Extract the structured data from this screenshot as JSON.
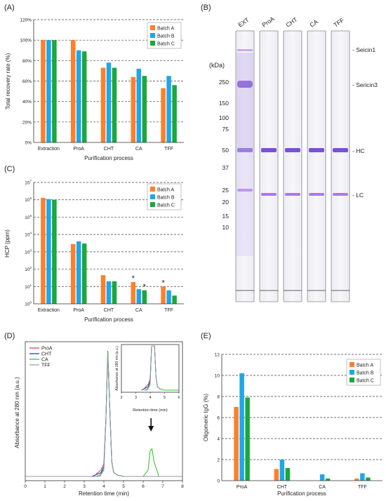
{
  "panels": {
    "A": {
      "letter": "(A)"
    },
    "B": {
      "letter": "(B)"
    },
    "C": {
      "letter": "(C)"
    },
    "D": {
      "letter": "(D)"
    },
    "E": {
      "letter": "(E)"
    }
  },
  "colors": {
    "batch_a": "#ff7f2a",
    "batch_b": "#1ea7e8",
    "batch_c": "#1aa83c",
    "proa": "#e8313b",
    "cht": "#1d2bd6",
    "ca": "#27c41f",
    "tff": "#8e9aa8"
  },
  "chart_data": [
    {
      "id": "A",
      "type": "bar",
      "xlabel": "Purification process",
      "ylabel": "Total recovery rate (%)",
      "categories": [
        "Extraction",
        "ProA",
        "CHT",
        "CA",
        "TFF"
      ],
      "ylim": [
        0,
        120
      ],
      "yticks": [
        "0%",
        "20%",
        "40%",
        "60%",
        "80%",
        "100%",
        "120%"
      ],
      "grid": "dashed horizontal",
      "legend": "top-right",
      "series": [
        {
          "name": "Batch A",
          "values": [
            100,
            100,
            73,
            64,
            53
          ]
        },
        {
          "name": "Batch B",
          "values": [
            100,
            90,
            78,
            72,
            65
          ]
        },
        {
          "name": "Batch C",
          "values": [
            100,
            89,
            73,
            65,
            56
          ]
        }
      ]
    },
    {
      "id": "B",
      "type": "table",
      "lanes": [
        "EXT",
        "ProA",
        "CHT",
        "CA",
        "TFF"
      ],
      "unit_label": "(kDa)",
      "markers": [
        "250",
        "150",
        "100",
        "75",
        "50",
        "37",
        "25",
        "20",
        "15",
        "10"
      ],
      "marker_kda": [
        250,
        150,
        100,
        75,
        50,
        37,
        25,
        20,
        15,
        10
      ],
      "band_labels": [
        "- Seicin1",
        "- Sericin3",
        "- HC",
        "- LC"
      ]
    },
    {
      "id": "C",
      "type": "bar",
      "xlabel": "Purification process",
      "ylabel": "HCP (ppm)",
      "categories": [
        "Extraction",
        "ProA",
        "CHT",
        "CA",
        "TFF"
      ],
      "yscale": "log",
      "ylim": [
        1,
        10000000
      ],
      "yticks_base": "10",
      "yticks_exp": [
        "0",
        "1",
        "2",
        "3",
        "4",
        "5",
        "6",
        "7"
      ],
      "grid": "dashed horizontal",
      "legend": "top-right",
      "series": [
        {
          "name": "Batch A",
          "values": [
            1300000,
            2800,
            45,
            18,
            10
          ]
        },
        {
          "name": "Batch B",
          "values": [
            1100000,
            4000,
            20,
            7,
            6
          ]
        },
        {
          "name": "Batch C",
          "values": [
            1000000,
            3000,
            20,
            6,
            3
          ]
        }
      ],
      "annotations": [
        {
          "text": "*",
          "category": "CA",
          "series": "Batch A"
        },
        {
          "text": "*",
          "category": "CA",
          "series": "Batch C"
        },
        {
          "text": "*",
          "category": "TFF",
          "series": "Batch A"
        }
      ]
    },
    {
      "id": "D",
      "type": "line",
      "xlabel": "Retention time (min)",
      "ylabel": "Absorbance at 280 nm (a.u.)",
      "xlim": [
        0,
        8
      ],
      "xticks": [
        "0",
        "1",
        "2",
        "3",
        "4",
        "5",
        "6",
        "7",
        "8"
      ],
      "legend": "top-left",
      "series": [
        {
          "name": "ProA",
          "x": [
            0,
            3.4,
            3.55,
            3.7,
            3.85,
            4.0,
            4.1,
            4.2,
            4.3,
            4.4,
            4.5,
            4.7,
            5.0,
            8
          ],
          "y": [
            0.0,
            0.0,
            0.01,
            0.03,
            0.05,
            0.1,
            0.45,
            1.0,
            0.55,
            0.12,
            0.03,
            0.01,
            0.0,
            0.0
          ]
        },
        {
          "name": "CHT",
          "x": [
            0,
            3.4,
            3.55,
            3.7,
            3.85,
            4.0,
            4.1,
            4.2,
            4.3,
            4.4,
            4.5,
            4.7,
            5.0,
            8
          ],
          "y": [
            0.0,
            0.0,
            0.01,
            0.02,
            0.03,
            0.08,
            0.43,
            0.98,
            0.55,
            0.12,
            0.03,
            0.01,
            0.0,
            0.0
          ]
        },
        {
          "name": "CA",
          "x": [
            0,
            3.6,
            3.8,
            4.0,
            4.1,
            4.2,
            4.3,
            4.4,
            4.5,
            4.7,
            5.0,
            6.0,
            6.25,
            6.35,
            6.45,
            6.55,
            6.8,
            8
          ],
          "y": [
            0.0,
            0.0,
            0.01,
            0.06,
            0.45,
            0.99,
            0.55,
            0.12,
            0.03,
            0.01,
            0.0,
            0.0,
            0.05,
            0.2,
            0.22,
            0.12,
            0.0,
            0.0
          ]
        },
        {
          "name": "TFF",
          "x": [
            0,
            3.6,
            3.8,
            4.0,
            4.1,
            4.2,
            4.3,
            4.4,
            4.5,
            4.7,
            5.0,
            8
          ],
          "y": [
            0.0,
            0.0,
            0.0,
            0.05,
            0.44,
            0.97,
            0.55,
            0.12,
            0.03,
            0.01,
            0.0,
            0.0
          ]
        }
      ],
      "inset": {
        "xlabel": "Retention time (min)",
        "ylabel": "Absorbance at 280 nm (a.u.)",
        "xlim": [
          2,
          6
        ],
        "xticks": [
          "2",
          "3",
          "4",
          "5",
          "6"
        ]
      },
      "arrow_at_x": 6.4
    },
    {
      "id": "E",
      "type": "bar",
      "xlabel": "Purification process",
      "ylabel": "Oligomeric IgG (%)",
      "categories": [
        "ProA",
        "CHT",
        "CA",
        "TFF"
      ],
      "ylim": [
        0,
        12
      ],
      "yticks": [
        "0",
        "2",
        "4",
        "6",
        "8",
        "10",
        "12"
      ],
      "grid": "dashed horizontal",
      "legend": "top-right",
      "series": [
        {
          "name": "Batch A",
          "values": [
            7.0,
            1.1,
            0.0,
            0.2
          ]
        },
        {
          "name": "Batch B",
          "values": [
            10.2,
            2.0,
            0.6,
            0.7
          ]
        },
        {
          "name": "Batch C",
          "values": [
            7.9,
            1.2,
            0.2,
            0.3
          ]
        }
      ]
    }
  ]
}
